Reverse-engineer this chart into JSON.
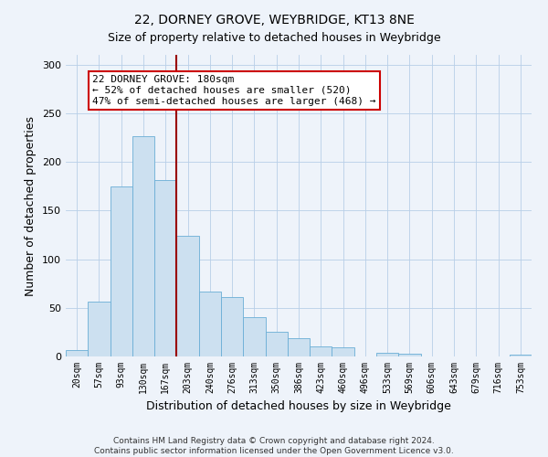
{
  "title": "22, DORNEY GROVE, WEYBRIDGE, KT13 8NE",
  "subtitle": "Size of property relative to detached houses in Weybridge",
  "xlabel": "Distribution of detached houses by size in Weybridge",
  "ylabel": "Number of detached properties",
  "bar_labels": [
    "20sqm",
    "57sqm",
    "93sqm",
    "130sqm",
    "167sqm",
    "203sqm",
    "240sqm",
    "276sqm",
    "313sqm",
    "350sqm",
    "386sqm",
    "423sqm",
    "460sqm",
    "496sqm",
    "533sqm",
    "569sqm",
    "606sqm",
    "643sqm",
    "679sqm",
    "716sqm",
    "753sqm"
  ],
  "bar_values": [
    7,
    56,
    175,
    226,
    181,
    124,
    67,
    61,
    40,
    25,
    19,
    10,
    9,
    0,
    4,
    3,
    0,
    0,
    0,
    0,
    2
  ],
  "bar_color": "#cce0f0",
  "bar_edge_color": "#6aaed6",
  "vline_x_idx": 4,
  "vline_color": "#990000",
  "annotation_title": "22 DORNEY GROVE: 180sqm",
  "annotation_line1": "← 52% of detached houses are smaller (520)",
  "annotation_line2": "47% of semi-detached houses are larger (468) →",
  "annotation_box_facecolor": "#ffffff",
  "annotation_box_edgecolor": "#cc0000",
  "ylim": [
    0,
    310
  ],
  "yticks": [
    0,
    50,
    100,
    150,
    200,
    250,
    300
  ],
  "footer1": "Contains HM Land Registry data © Crown copyright and database right 2024.",
  "footer2": "Contains public sector information licensed under the Open Government Licence v3.0.",
  "background_color": "#eef3fa",
  "grid_color": "#b8cfe8",
  "title_fontsize": 10,
  "subtitle_fontsize": 9,
  "axis_label_fontsize": 9,
  "tick_fontsize": 7,
  "annotation_fontsize": 8,
  "footer_fontsize": 6.5
}
